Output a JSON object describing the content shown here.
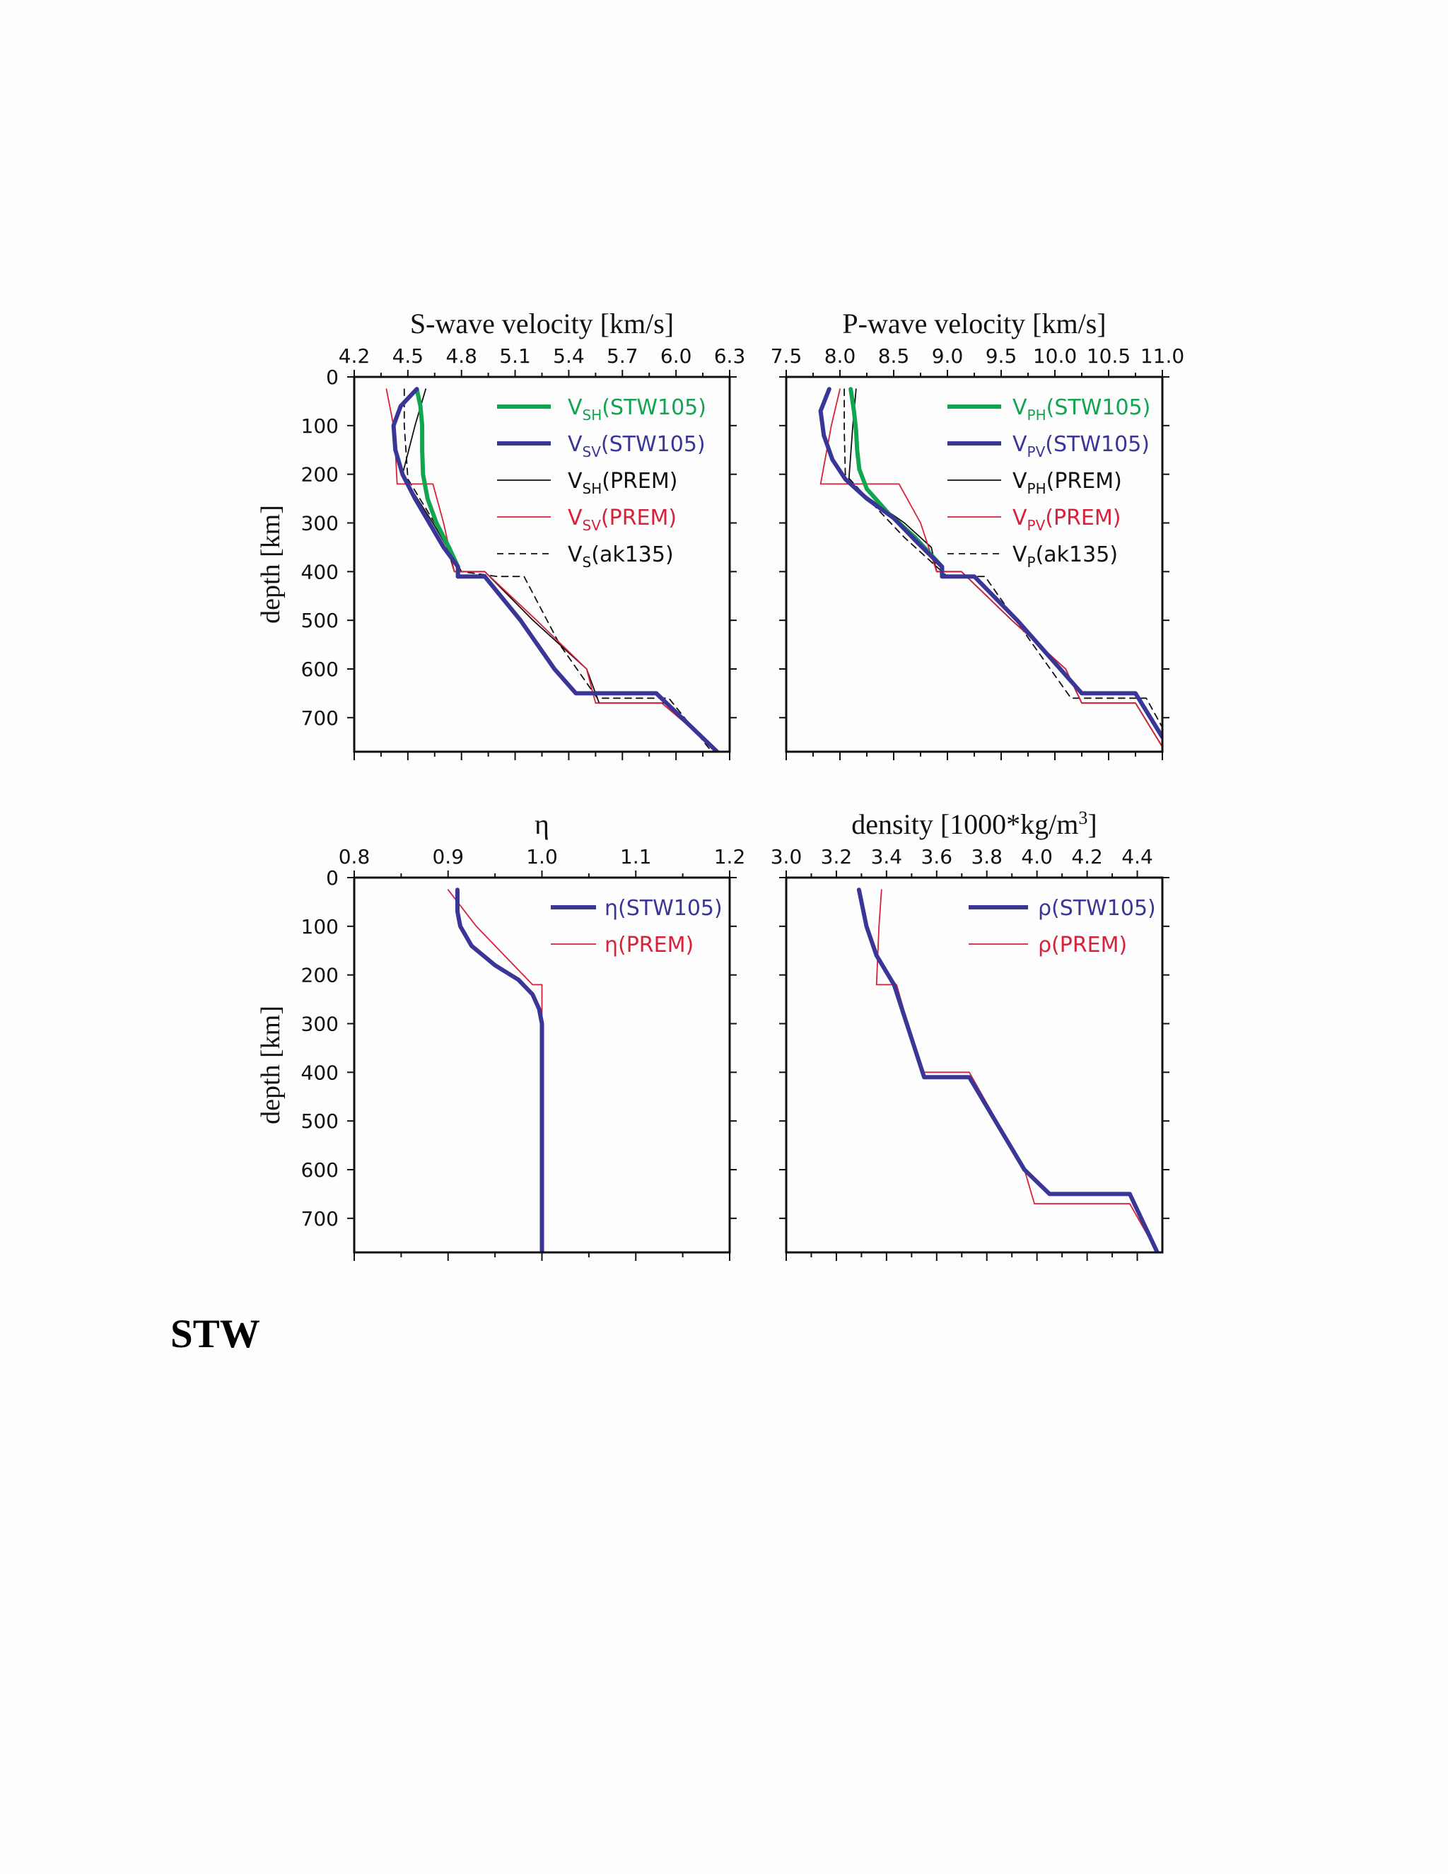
{
  "heading": "STW",
  "colors": {
    "green": "#12a550",
    "blue": "#3a3697",
    "red": "#d6223b",
    "black": "#111111"
  },
  "chart_data": [
    {
      "id": "s",
      "type": "line",
      "title": "S-wave velocity [km/s]",
      "ylabel": "depth [km]",
      "xlim": [
        4.2,
        6.3
      ],
      "ylim": [
        0,
        770
      ],
      "y_inverted": true,
      "xticks": [
        4.2,
        4.5,
        4.8,
        5.1,
        5.4,
        5.7,
        6.0,
        6.3
      ],
      "xtick_labels": [
        "4.2",
        "4.5",
        "4.8",
        "5.1",
        "5.4",
        "5.7",
        "6.0",
        "6.3"
      ],
      "yticks": [
        0,
        100,
        200,
        300,
        400,
        500,
        600,
        700
      ],
      "ytick_labels": [
        "0",
        "100",
        "200",
        "300",
        "400",
        "500",
        "600",
        "700"
      ],
      "legend_position": "top-right",
      "series": [
        {
          "name": "VSH(STW105)",
          "sub": "SH",
          "suffix": "(STW105)",
          "style": "thick",
          "color": "green",
          "points": [
            [
              4.55,
              25
            ],
            [
              4.57,
              60
            ],
            [
              4.58,
              100
            ],
            [
              4.58,
              150
            ],
            [
              4.585,
              200
            ],
            [
              4.61,
              250
            ],
            [
              4.66,
              300
            ],
            [
              4.73,
              350
            ],
            [
              4.78,
              390
            ],
            [
              4.78,
              410
            ]
          ]
        },
        {
          "name": "VSV(STW105)",
          "sub": "SV",
          "suffix": "(STW105)",
          "style": "thick",
          "color": "blue",
          "points": [
            [
              4.55,
              25
            ],
            [
              4.46,
              60
            ],
            [
              4.42,
              100
            ],
            [
              4.43,
              150
            ],
            [
              4.47,
              200
            ],
            [
              4.54,
              250
            ],
            [
              4.62,
              300
            ],
            [
              4.7,
              350
            ],
            [
              4.78,
              390
            ],
            [
              4.78,
              410
            ],
            [
              4.93,
              410
            ],
            [
              5.13,
              500
            ],
            [
              5.32,
              600
            ],
            [
              5.44,
              650
            ],
            [
              5.89,
              650
            ],
            [
              6.23,
              770
            ]
          ]
        },
        {
          "name": "VSH(PREM)",
          "sub": "SH",
          "suffix": "(PREM)",
          "style": "thin",
          "color": "black",
          "points": [
            [
              4.6,
              25
            ],
            [
              4.54,
              100
            ],
            [
              4.47,
              200
            ],
            [
              4.5,
              220
            ],
            [
              4.64,
              300
            ],
            [
              4.72,
              350
            ],
            [
              4.76,
              400
            ],
            [
              4.93,
              400
            ],
            [
              5.2,
              500
            ],
            [
              5.5,
              600
            ],
            [
              5.57,
              670
            ],
            [
              5.95,
              670
            ],
            [
              6.24,
              770
            ]
          ]
        },
        {
          "name": "VSV(PREM)",
          "sub": "SV",
          "suffix": "(PREM)",
          "style": "thin",
          "color": "red",
          "points": [
            [
              4.38,
              25
            ],
            [
              4.42,
              100
            ],
            [
              4.43,
              150
            ],
            [
              4.44,
              220
            ],
            [
              4.64,
              220
            ],
            [
              4.7,
              300
            ],
            [
              4.76,
              400
            ],
            [
              4.93,
              400
            ],
            [
              5.22,
              500
            ],
            [
              5.5,
              600
            ],
            [
              5.55,
              670
            ],
            [
              5.92,
              670
            ],
            [
              6.24,
              770
            ]
          ]
        },
        {
          "name": "VS(ak135)",
          "sub": "S",
          "suffix": "(ak135)",
          "style": "dashed",
          "color": "black",
          "points": [
            [
              4.48,
              25
            ],
            [
              4.48,
              100
            ],
            [
              4.5,
              210
            ],
            [
              4.65,
              300
            ],
            [
              4.8,
              400
            ],
            [
              5.0,
              410
            ],
            [
              5.15,
              410
            ],
            [
              5.35,
              550
            ],
            [
              5.56,
              660
            ],
            [
              5.96,
              660
            ],
            [
              6.2,
              770
            ]
          ]
        }
      ]
    },
    {
      "id": "p",
      "type": "line",
      "title": "P-wave velocity [km/s]",
      "ylabel": "",
      "xlim": [
        7.5,
        11.0
      ],
      "ylim": [
        0,
        770
      ],
      "y_inverted": true,
      "xticks": [
        7.5,
        8.0,
        8.5,
        9.0,
        9.5,
        10.0,
        10.5,
        11.0
      ],
      "xtick_labels": [
        "7.5",
        "8.0",
        "8.5",
        "9.0",
        "9.5",
        "10.0",
        "10.5",
        "11.0"
      ],
      "yticks": [
        0,
        100,
        200,
        300,
        400,
        500,
        600,
        700
      ],
      "ytick_labels": [
        "",
        "",
        "",
        "",
        "",
        "",
        "",
        ""
      ],
      "legend_position": "top-right",
      "series": [
        {
          "name": "VPH(STW105)",
          "sub": "PH",
          "suffix": "(STW105)",
          "style": "thick",
          "color": "green",
          "points": [
            [
              8.1,
              25
            ],
            [
              8.13,
              70
            ],
            [
              8.15,
              110
            ],
            [
              8.16,
              150
            ],
            [
              8.18,
              190
            ],
            [
              8.25,
              230
            ],
            [
              8.45,
              280
            ],
            [
              8.7,
              330
            ],
            [
              8.95,
              390
            ],
            [
              8.95,
              410
            ]
          ]
        },
        {
          "name": "VPV(STW105)",
          "sub": "PV",
          "suffix": "(STW105)",
          "style": "thick",
          "color": "blue",
          "points": [
            [
              7.9,
              25
            ],
            [
              7.82,
              70
            ],
            [
              7.85,
              120
            ],
            [
              7.93,
              170
            ],
            [
              8.05,
              210
            ],
            [
              8.25,
              250
            ],
            [
              8.5,
              290
            ],
            [
              8.72,
              340
            ],
            [
              8.95,
              390
            ],
            [
              8.95,
              410
            ],
            [
              9.25,
              410
            ],
            [
              9.65,
              500
            ],
            [
              10.05,
              600
            ],
            [
              10.25,
              650
            ],
            [
              10.75,
              650
            ],
            [
              11.0,
              740
            ]
          ]
        },
        {
          "name": "VPH(PREM)",
          "sub": "PH",
          "suffix": "(PREM)",
          "style": "thin",
          "color": "black",
          "points": [
            [
              8.15,
              25
            ],
            [
              8.12,
              100
            ],
            [
              8.08,
              220
            ],
            [
              8.6,
              300
            ],
            [
              8.85,
              350
            ],
            [
              8.9,
              400
            ],
            [
              9.13,
              400
            ],
            [
              9.6,
              500
            ],
            [
              10.1,
              600
            ],
            [
              10.25,
              670
            ],
            [
              10.75,
              670
            ],
            [
              11.0,
              760
            ]
          ]
        },
        {
          "name": "VPV(PREM)",
          "sub": "PV",
          "suffix": "(PREM)",
          "style": "thin",
          "color": "red",
          "points": [
            [
              8.0,
              25
            ],
            [
              7.92,
              100
            ],
            [
              7.82,
              220
            ],
            [
              8.55,
              220
            ],
            [
              8.75,
              300
            ],
            [
              8.9,
              400
            ],
            [
              9.13,
              400
            ],
            [
              9.6,
              500
            ],
            [
              10.1,
              600
            ],
            [
              10.25,
              670
            ],
            [
              10.75,
              670
            ],
            [
              11.0,
              760
            ]
          ]
        },
        {
          "name": "VP(ak135)",
          "sub": "P",
          "suffix": "(ak135)",
          "style": "dashed",
          "color": "black",
          "points": [
            [
              8.04,
              25
            ],
            [
              8.04,
              110
            ],
            [
              8.05,
              200
            ],
            [
              8.3,
              260
            ],
            [
              8.6,
              330
            ],
            [
              9.0,
              410
            ],
            [
              9.35,
              410
            ],
            [
              9.7,
              520
            ],
            [
              10.15,
              660
            ],
            [
              10.85,
              660
            ],
            [
              11.0,
              720
            ]
          ]
        }
      ]
    },
    {
      "id": "eta",
      "type": "line",
      "title": "η",
      "ylabel": "depth [km]",
      "xlim": [
        0.8,
        1.2
      ],
      "ylim": [
        0,
        770
      ],
      "y_inverted": true,
      "xticks": [
        0.8,
        0.9,
        1.0,
        1.1,
        1.2
      ],
      "xtick_labels": [
        "0.8",
        "0.9",
        "1.0",
        "1.1",
        "1.2"
      ],
      "yticks": [
        0,
        100,
        200,
        300,
        400,
        500,
        600,
        700
      ],
      "ytick_labels": [
        "0",
        "100",
        "200",
        "300",
        "400",
        "500",
        "600",
        "700"
      ],
      "legend_position": "top-right",
      "series": [
        {
          "name": "η(STW105)",
          "prefix": "η",
          "suffix": "(STW105)",
          "style": "thick",
          "color": "blue",
          "points": [
            [
              0.91,
              25
            ],
            [
              0.91,
              70
            ],
            [
              0.913,
              100
            ],
            [
              0.925,
              140
            ],
            [
              0.95,
              180
            ],
            [
              0.975,
              210
            ],
            [
              0.99,
              240
            ],
            [
              0.997,
              270
            ],
            [
              1.0,
              300
            ],
            [
              1.0,
              400
            ],
            [
              1.0,
              770
            ]
          ]
        },
        {
          "name": "η(PREM)",
          "prefix": "η",
          "suffix": "(PREM)",
          "style": "thin",
          "color": "red",
          "points": [
            [
              0.9,
              25
            ],
            [
              0.93,
              100
            ],
            [
              0.96,
              160
            ],
            [
              0.99,
              220
            ],
            [
              1.0,
              220
            ],
            [
              1.0,
              770
            ]
          ]
        }
      ]
    },
    {
      "id": "rho",
      "type": "line",
      "title": "density [1000*kg/m3]",
      "title_main": "density [1000*kg/m",
      "title_sup": "3",
      "title_end": "]",
      "ylabel": "",
      "xlim": [
        3.0,
        4.5
      ],
      "ylim": [
        0,
        770
      ],
      "y_inverted": true,
      "xticks": [
        3.0,
        3.2,
        3.4,
        3.6,
        3.8,
        4.0,
        4.2,
        4.4
      ],
      "xtick_labels": [
        "3.0",
        "3.2",
        "3.4",
        "3.6",
        "3.8",
        "4.0",
        "4.2",
        "4.4"
      ],
      "yticks": [
        0,
        100,
        200,
        300,
        400,
        500,
        600,
        700
      ],
      "ytick_labels": [
        "",
        "",
        "",
        "",
        "",
        "",
        "",
        ""
      ],
      "legend_position": "top-right",
      "series": [
        {
          "name": "ρ(STW105)",
          "prefix": "ρ",
          "suffix": "(STW105)",
          "style": "thick",
          "color": "blue",
          "points": [
            [
              3.29,
              25
            ],
            [
              3.32,
              100
            ],
            [
              3.36,
              160
            ],
            [
              3.43,
              220
            ],
            [
              3.55,
              410
            ],
            [
              3.73,
              410
            ],
            [
              3.95,
              600
            ],
            [
              4.05,
              650
            ],
            [
              4.37,
              650
            ],
            [
              4.48,
              770
            ]
          ]
        },
        {
          "name": "ρ(PREM)",
          "prefix": "ρ",
          "suffix": "(PREM)",
          "style": "thin",
          "color": "red",
          "points": [
            [
              3.38,
              25
            ],
            [
              3.37,
              100
            ],
            [
              3.36,
              220
            ],
            [
              3.44,
              220
            ],
            [
              3.54,
              400
            ],
            [
              3.73,
              400
            ],
            [
              3.95,
              600
            ],
            [
              3.99,
              670
            ],
            [
              4.37,
              670
            ],
            [
              4.48,
              770
            ]
          ]
        }
      ]
    }
  ]
}
